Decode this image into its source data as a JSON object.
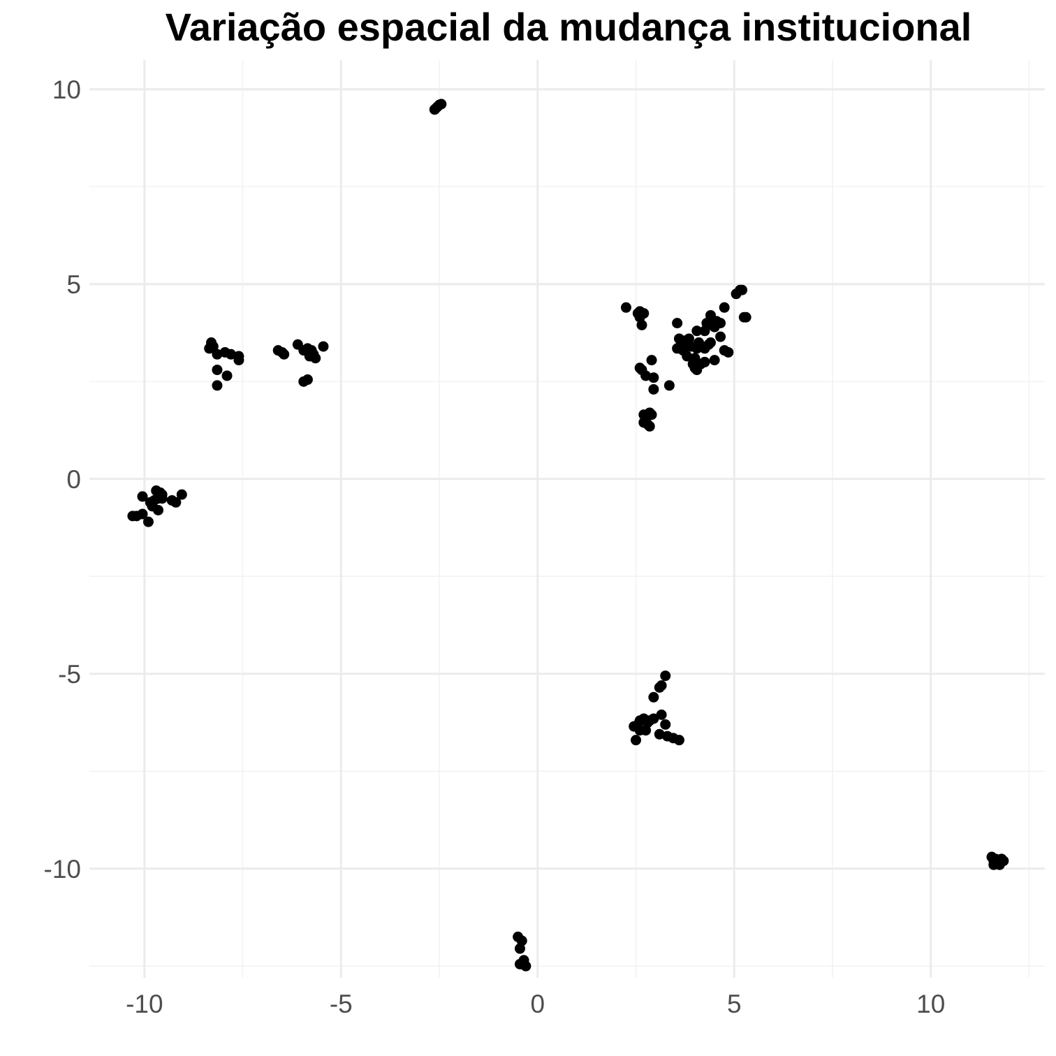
{
  "chart_data": {
    "type": "scatter",
    "title": "Variação espacial da mudança institucional",
    "xlabel": "",
    "ylabel": "",
    "xlim": [
      -11.4,
      12.9
    ],
    "ylim": [
      -12.8,
      10.75
    ],
    "x_ticks": [
      -10,
      -5,
      0,
      5,
      10
    ],
    "x_tick_labels": [
      "-10",
      "-5",
      "0",
      "5",
      "10"
    ],
    "y_ticks": [
      -10,
      -5,
      0,
      5,
      10
    ],
    "y_tick_labels": [
      "-10",
      "-5",
      "0",
      "5",
      "10"
    ],
    "x_minor_ticks": [
      -7.5,
      -2.5,
      2.5,
      7.5,
      12.5
    ],
    "y_minor_ticks": [
      -12.5,
      -7.5,
      -2.5,
      2.5,
      7.5
    ],
    "grid": true,
    "point_color": "#000000",
    "points": [
      {
        "x": -2.6,
        "y": 9.5
      },
      {
        "x": -2.55,
        "y": 9.55
      },
      {
        "x": -2.5,
        "y": 9.6
      },
      {
        "x": -2.45,
        "y": 9.62
      },
      {
        "x": -2.62,
        "y": 9.48
      },
      {
        "x": -8.3,
        "y": 3.5
      },
      {
        "x": -8.25,
        "y": 3.4
      },
      {
        "x": -8.35,
        "y": 3.35
      },
      {
        "x": -8.15,
        "y": 3.2
      },
      {
        "x": -7.95,
        "y": 3.25
      },
      {
        "x": -7.8,
        "y": 3.2
      },
      {
        "x": -7.6,
        "y": 3.15
      },
      {
        "x": -7.6,
        "y": 3.05
      },
      {
        "x": -8.15,
        "y": 2.8
      },
      {
        "x": -7.9,
        "y": 2.65
      },
      {
        "x": -8.15,
        "y": 2.4
      },
      {
        "x": -6.6,
        "y": 3.3
      },
      {
        "x": -6.5,
        "y": 3.25
      },
      {
        "x": -6.45,
        "y": 3.2
      },
      {
        "x": -6.1,
        "y": 3.45
      },
      {
        "x": -5.95,
        "y": 3.3
      },
      {
        "x": -5.85,
        "y": 3.35
      },
      {
        "x": -5.75,
        "y": 3.3
      },
      {
        "x": -5.7,
        "y": 3.2
      },
      {
        "x": -5.65,
        "y": 3.1
      },
      {
        "x": -5.8,
        "y": 3.15
      },
      {
        "x": -5.45,
        "y": 3.4
      },
      {
        "x": -5.95,
        "y": 2.5
      },
      {
        "x": -5.85,
        "y": 2.55
      },
      {
        "x": -10.3,
        "y": -0.95
      },
      {
        "x": -10.2,
        "y": -0.95
      },
      {
        "x": -10.05,
        "y": -0.9
      },
      {
        "x": -9.9,
        "y": -1.1
      },
      {
        "x": -10.05,
        "y": -0.45
      },
      {
        "x": -9.85,
        "y": -0.6
      },
      {
        "x": -9.75,
        "y": -0.55
      },
      {
        "x": -9.7,
        "y": -0.3
      },
      {
        "x": -9.65,
        "y": -0.5
      },
      {
        "x": -9.6,
        "y": -0.35
      },
      {
        "x": -9.55,
        "y": -0.4
      },
      {
        "x": -9.55,
        "y": -0.5
      },
      {
        "x": -9.65,
        "y": -0.8
      },
      {
        "x": -9.3,
        "y": -0.55
      },
      {
        "x": -9.2,
        "y": -0.6
      },
      {
        "x": -9.05,
        "y": -0.4
      },
      {
        "x": -9.8,
        "y": -0.7
      },
      {
        "x": 2.25,
        "y": 4.4
      },
      {
        "x": 2.55,
        "y": 4.25
      },
      {
        "x": 2.6,
        "y": 4.3
      },
      {
        "x": 2.7,
        "y": 4.25
      },
      {
        "x": 2.6,
        "y": 4.15
      },
      {
        "x": 2.65,
        "y": 3.95
      },
      {
        "x": 3.55,
        "y": 4.0
      },
      {
        "x": 3.6,
        "y": 3.6
      },
      {
        "x": 3.65,
        "y": 3.45
      },
      {
        "x": 3.55,
        "y": 3.35
      },
      {
        "x": 3.7,
        "y": 3.3
      },
      {
        "x": 3.75,
        "y": 3.55
      },
      {
        "x": 3.85,
        "y": 3.6
      },
      {
        "x": 3.9,
        "y": 3.4
      },
      {
        "x": 3.8,
        "y": 3.15
      },
      {
        "x": 4.0,
        "y": 3.1
      },
      {
        "x": 4.05,
        "y": 3.35
      },
      {
        "x": 4.1,
        "y": 3.5
      },
      {
        "x": 4.05,
        "y": 3.8
      },
      {
        "x": 4.25,
        "y": 3.8
      },
      {
        "x": 4.3,
        "y": 4.0
      },
      {
        "x": 4.4,
        "y": 4.2
      },
      {
        "x": 4.45,
        "y": 3.95
      },
      {
        "x": 4.55,
        "y": 4.05
      },
      {
        "x": 4.65,
        "y": 4.0
      },
      {
        "x": 4.5,
        "y": 3.9
      },
      {
        "x": 4.35,
        "y": 3.45
      },
      {
        "x": 4.25,
        "y": 3.35
      },
      {
        "x": 4.4,
        "y": 3.5
      },
      {
        "x": 4.65,
        "y": 3.65
      },
      {
        "x": 4.75,
        "y": 4.4
      },
      {
        "x": 5.05,
        "y": 4.75
      },
      {
        "x": 5.15,
        "y": 4.85
      },
      {
        "x": 5.2,
        "y": 4.85
      },
      {
        "x": 5.25,
        "y": 4.15
      },
      {
        "x": 5.3,
        "y": 4.15
      },
      {
        "x": 4.75,
        "y": 3.3
      },
      {
        "x": 4.85,
        "y": 3.25
      },
      {
        "x": 4.5,
        "y": 3.05
      },
      {
        "x": 4.25,
        "y": 3.0
      },
      {
        "x": 4.15,
        "y": 2.95
      },
      {
        "x": 4.0,
        "y": 2.85
      },
      {
        "x": 4.05,
        "y": 2.8
      },
      {
        "x": 3.95,
        "y": 2.95
      },
      {
        "x": 2.6,
        "y": 2.85
      },
      {
        "x": 2.65,
        "y": 2.8
      },
      {
        "x": 2.75,
        "y": 2.65
      },
      {
        "x": 2.95,
        "y": 2.6
      },
      {
        "x": 2.9,
        "y": 3.05
      },
      {
        "x": 2.95,
        "y": 2.3
      },
      {
        "x": 3.35,
        "y": 2.4
      },
      {
        "x": 2.7,
        "y": 1.65
      },
      {
        "x": 2.75,
        "y": 1.55
      },
      {
        "x": 2.85,
        "y": 1.7
      },
      {
        "x": 2.9,
        "y": 1.65
      },
      {
        "x": 2.7,
        "y": 1.45
      },
      {
        "x": 2.8,
        "y": 1.4
      },
      {
        "x": 2.85,
        "y": 1.35
      },
      {
        "x": 3.25,
        "y": -5.05
      },
      {
        "x": 3.15,
        "y": -5.3
      },
      {
        "x": 3.1,
        "y": -5.35
      },
      {
        "x": 2.95,
        "y": -5.6
      },
      {
        "x": 2.45,
        "y": -6.35
      },
      {
        "x": 2.55,
        "y": -6.3
      },
      {
        "x": 2.6,
        "y": -6.2
      },
      {
        "x": 2.7,
        "y": -6.15
      },
      {
        "x": 2.8,
        "y": -6.25
      },
      {
        "x": 2.85,
        "y": -6.2
      },
      {
        "x": 2.95,
        "y": -6.15
      },
      {
        "x": 2.6,
        "y": -6.45
      },
      {
        "x": 2.75,
        "y": -6.45
      },
      {
        "x": 2.5,
        "y": -6.7
      },
      {
        "x": 3.15,
        "y": -6.05
      },
      {
        "x": 3.25,
        "y": -6.3
      },
      {
        "x": 3.1,
        "y": -6.55
      },
      {
        "x": 3.3,
        "y": -6.6
      },
      {
        "x": 3.45,
        "y": -6.65
      },
      {
        "x": 3.6,
        "y": -6.7
      },
      {
        "x": -0.5,
        "y": -11.75
      },
      {
        "x": -0.4,
        "y": -11.85
      },
      {
        "x": -0.45,
        "y": -12.05
      },
      {
        "x": -0.4,
        "y": -12.45
      },
      {
        "x": -0.35,
        "y": -12.35
      },
      {
        "x": -0.3,
        "y": -12.5
      },
      {
        "x": -0.45,
        "y": -12.45
      },
      {
        "x": 11.55,
        "y": -9.7
      },
      {
        "x": 11.6,
        "y": -9.8
      },
      {
        "x": 11.65,
        "y": -9.75
      },
      {
        "x": 11.7,
        "y": -9.85
      },
      {
        "x": 11.75,
        "y": -9.9
      },
      {
        "x": 11.8,
        "y": -9.75
      },
      {
        "x": 11.85,
        "y": -9.8
      },
      {
        "x": 11.6,
        "y": -9.9
      }
    ]
  }
}
